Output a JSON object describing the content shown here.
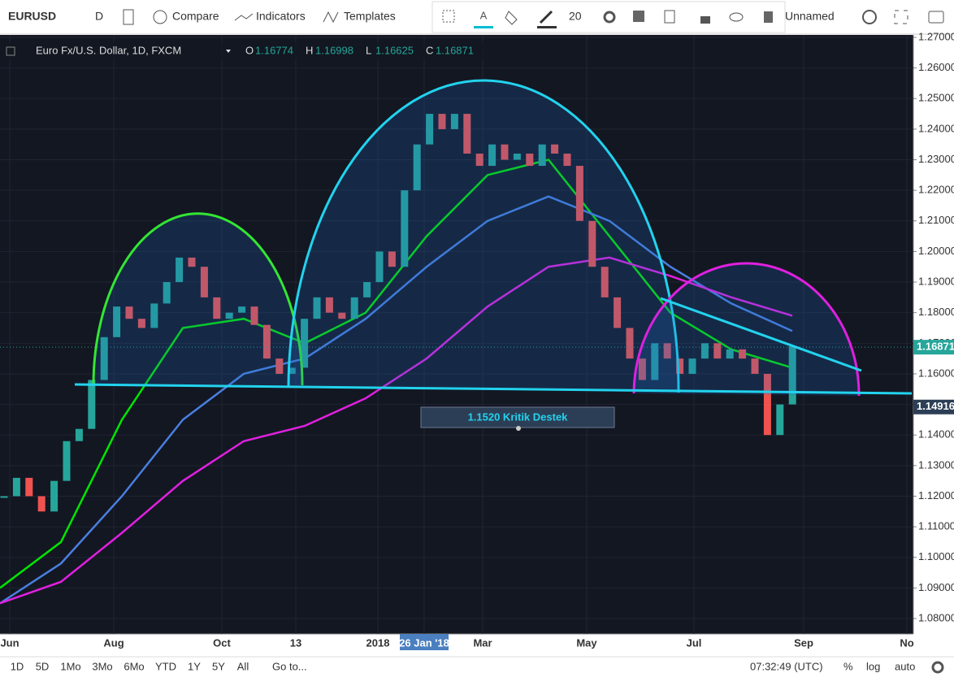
{
  "toolbar": {
    "symbol": "EURUSD",
    "interval": "D",
    "compare": "Compare",
    "indicators": "Indicators",
    "templates": "Templates",
    "font_size": "20",
    "layout": "Unnamed"
  },
  "chart_data": {
    "type": "candlestick",
    "title": "Euro Fx/U.S. Dollar, 1D, FXCM",
    "ohlc": [
      {
        "label": "O",
        "value": 1.16774
      },
      {
        "label": "H",
        "value": 1.16998
      },
      {
        "label": "L",
        "value": 1.16625
      },
      {
        "label": "C",
        "value": 1.16871
      }
    ],
    "closes": [
      1.12,
      1.126,
      1.12,
      1.115,
      1.125,
      1.138,
      1.142,
      1.158,
      1.172,
      1.182,
      1.178,
      1.175,
      1.183,
      1.19,
      1.198,
      1.195,
      1.185,
      1.178,
      1.18,
      1.182,
      1.176,
      1.165,
      1.16,
      1.162,
      1.178,
      1.185,
      1.18,
      1.178,
      1.185,
      1.19,
      1.2,
      1.195,
      1.22,
      1.235,
      1.245,
      1.24,
      1.245,
      1.232,
      1.228,
      1.235,
      1.23,
      1.232,
      1.228,
      1.235,
      1.232,
      1.228,
      1.21,
      1.195,
      1.185,
      1.175,
      1.165,
      1.158,
      1.17,
      1.165,
      1.16,
      1.165,
      1.17,
      1.165,
      1.168,
      1.165,
      1.16,
      1.14,
      1.15,
      1.169
    ],
    "up_color": "#26a69a",
    "down_color": "#ef5350",
    "moving_averages": [
      {
        "color": "#00e600",
        "values": [
          1.09,
          1.105,
          1.145,
          1.175,
          1.178,
          1.17,
          1.18,
          1.205,
          1.225,
          1.23,
          1.205,
          1.18,
          1.168,
          1.162
        ]
      },
      {
        "color": "#4a7fe0",
        "values": [
          1.085,
          1.098,
          1.12,
          1.145,
          1.16,
          1.165,
          1.178,
          1.195,
          1.21,
          1.218,
          1.21,
          1.195,
          1.183,
          1.174
        ]
      },
      {
        "color": "#e020e0",
        "values": [
          1.085,
          1.092,
          1.108,
          1.125,
          1.138,
          1.143,
          1.152,
          1.165,
          1.182,
          1.195,
          1.198,
          1.192,
          1.185,
          1.179
        ]
      }
    ],
    "ylim": [
      1.08,
      1.27
    ],
    "yticks": [
      {
        "value": 1.27,
        "label": "1.27000"
      },
      {
        "value": 1.26,
        "label": "1.26000"
      },
      {
        "value": 1.25,
        "label": "1.25000"
      },
      {
        "value": 1.24,
        "label": "1.24000"
      },
      {
        "value": 1.23,
        "label": "1.23000"
      },
      {
        "value": 1.22,
        "label": "1.22000"
      },
      {
        "value": 1.21,
        "label": "1.21000"
      },
      {
        "value": 1.2,
        "label": "1.20000"
      },
      {
        "value": 1.19,
        "label": "1.19000"
      },
      {
        "value": 1.18,
        "label": "1.18000"
      },
      {
        "value": 1.17,
        "label": "1.17000"
      },
      {
        "value": 1.16,
        "label": "1.16000"
      },
      {
        "value": 1.15,
        "label": "1.15000"
      },
      {
        "value": 1.14,
        "label": "1.14000"
      },
      {
        "value": 1.13,
        "label": "1.13000"
      },
      {
        "value": 1.12,
        "label": "1.12000"
      },
      {
        "value": 1.11,
        "label": "1.11000"
      },
      {
        "value": 1.1,
        "label": "1.10000"
      },
      {
        "value": 1.09,
        "label": "1.09000"
      },
      {
        "value": 1.08,
        "label": "1.08000"
      }
    ],
    "last_price": 1.16871,
    "marker_price": 1.14916,
    "x_labels": [
      "Jun",
      "Aug",
      "Oct",
      "13",
      "2018",
      "26 Jan '18",
      "Mar",
      "May",
      "Jul",
      "Sep",
      "No"
    ],
    "annotation": "1.1520 Kritik Destek"
  },
  "bottom_bar": {
    "ranges": [
      "1D",
      "5D",
      "1Mo",
      "3Mo",
      "6Mo",
      "YTD",
      "1Y",
      "5Y",
      "All"
    ],
    "goto": "Go to...",
    "time": "07:32:49 (UTC)",
    "percent": "%",
    "log": "log",
    "auto": "auto"
  }
}
